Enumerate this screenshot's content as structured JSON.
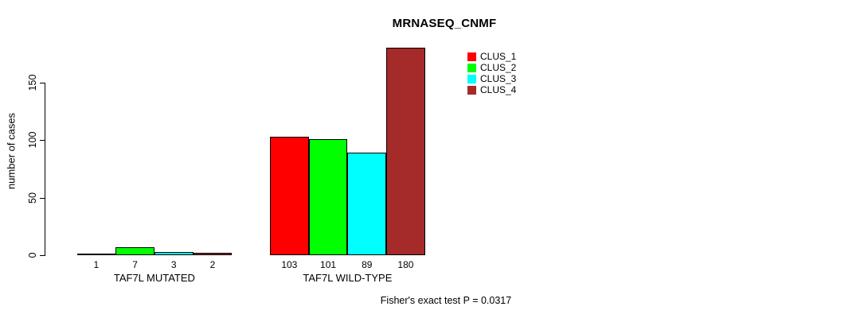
{
  "title": "MRNASEQ_CNMF",
  "footer": "Fisher's exact test P = 0.0317",
  "chart_data": {
    "type": "bar",
    "title": "MRNASEQ_CNMF",
    "xlabel": "",
    "ylabel": "number of cases",
    "categories": [
      "TAF7L MUTATED",
      "TAF7L WILD-TYPE"
    ],
    "series": [
      {
        "name": "CLUS_1",
        "color": "#FF0000",
        "values": [
          1,
          103
        ]
      },
      {
        "name": "CLUS_2",
        "color": "#00FF00",
        "values": [
          7,
          101
        ]
      },
      {
        "name": "CLUS_3",
        "color": "#00FFFF",
        "values": [
          3,
          89
        ]
      },
      {
        "name": "CLUS_4",
        "color": "#A52A2A",
        "values": [
          2,
          180
        ]
      }
    ],
    "bar_labels": [
      [
        1,
        7,
        3,
        2
      ],
      [
        103,
        101,
        89,
        180
      ]
    ],
    "yticks": [
      0,
      50,
      100,
      150
    ],
    "ylim": [
      0,
      180
    ],
    "grid": false,
    "legend_position": "top-right",
    "annotation": "Fisher's exact test P = 0.0317",
    "bar_border_color": "#000000",
    "background_color": "#FFFFFF"
  }
}
